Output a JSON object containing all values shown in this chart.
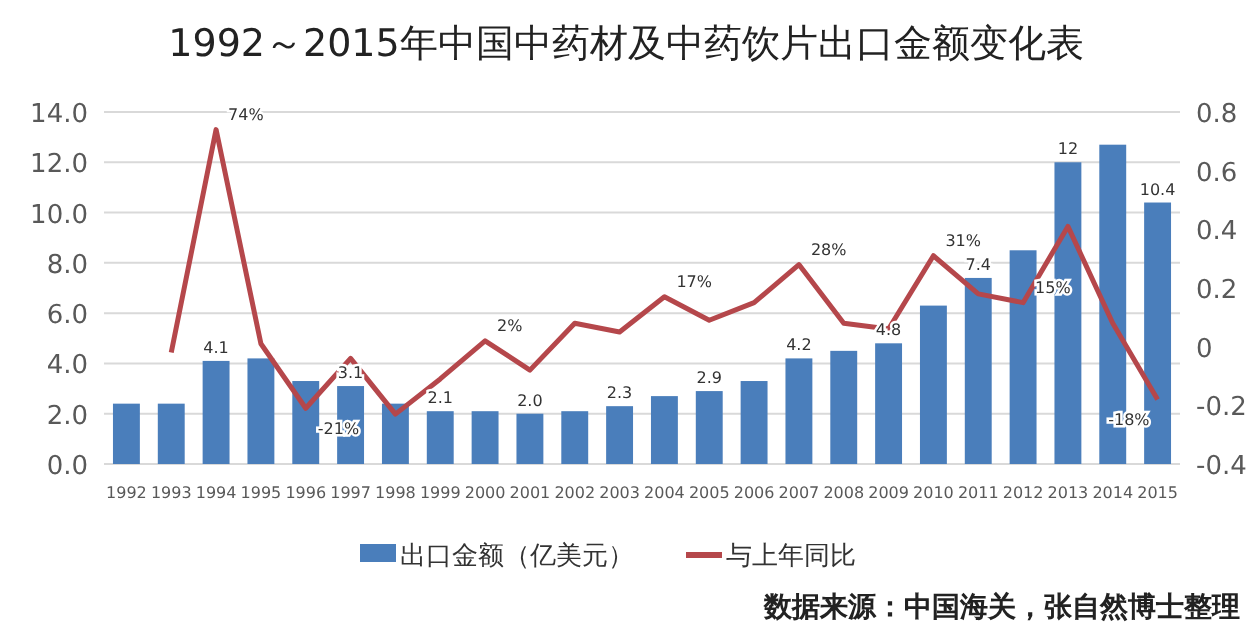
{
  "chart_data": {
    "type": "bar",
    "title": "1992～2015年中国中药材及中药饮片出口金额变化表",
    "categories": [
      "1992",
      "1993",
      "1994",
      "1995",
      "1996",
      "1997",
      "1998",
      "1999",
      "2000",
      "2001",
      "2002",
      "2003",
      "2004",
      "2005",
      "2006",
      "2007",
      "2008",
      "2009",
      "2010",
      "2011",
      "2012",
      "2013",
      "2014",
      "2015"
    ],
    "series": [
      {
        "name": "出口金额（亿美元）",
        "color": "#4a7ebb",
        "values": [
          2.4,
          2.4,
          4.1,
          4.2,
          3.3,
          3.1,
          2.4,
          2.1,
          2.1,
          2.0,
          2.1,
          2.3,
          2.7,
          2.9,
          3.3,
          4.2,
          4.5,
          4.8,
          6.3,
          7.4,
          8.5,
          12,
          12.7,
          10.4
        ],
        "value_labels": [
          null,
          null,
          "4.1",
          null,
          null,
          "3.1",
          null,
          "2.1",
          null,
          "2.0",
          null,
          "2.3",
          null,
          "2.9",
          null,
          "4.2",
          null,
          "4.8",
          null,
          "7.4",
          null,
          "12",
          null,
          "10.4"
        ]
      },
      {
        "name": "与上年同比",
        "type": "line",
        "axis": "y2",
        "color": "#b5474b",
        "values": [
          null,
          -0.02,
          0.74,
          0.01,
          -0.21,
          -0.04,
          -0.23,
          -0.11,
          0.02,
          -0.08,
          0.08,
          0.05,
          0.17,
          0.09,
          0.15,
          0.28,
          0.08,
          0.06,
          0.31,
          0.18,
          0.15,
          0.41,
          0.08,
          -0.18
        ],
        "value_labels": [
          null,
          null,
          "74%",
          null,
          "-21%",
          null,
          null,
          null,
          "2%",
          null,
          null,
          null,
          "17%",
          null,
          null,
          "28%",
          null,
          null,
          "31%",
          null,
          "15%",
          null,
          null,
          "-18%"
        ]
      }
    ],
    "ylim": [
      0,
      14
    ],
    "yticks": [
      {
        "value": 0,
        "label": "0.0"
      },
      {
        "value": 2,
        "label": "2.0"
      },
      {
        "value": 4,
        "label": "4.0"
      },
      {
        "value": 6,
        "label": "6.0"
      },
      {
        "value": 8,
        "label": "8.0"
      },
      {
        "value": 10,
        "label": "10.0"
      },
      {
        "value": 12,
        "label": "12.0"
      },
      {
        "value": 14,
        "label": "14.0"
      }
    ],
    "y2lim": [
      -0.4,
      0.8
    ],
    "y2ticks": [
      -0.4,
      -0.2,
      0,
      0.2,
      0.4,
      0.6,
      0.8
    ],
    "grid": "y",
    "legend": "bottom",
    "annotations": [
      "数据来源：中国海关，张自然博士整理"
    ]
  }
}
